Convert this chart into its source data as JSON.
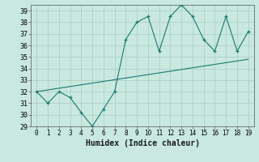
{
  "zigzag_x": [
    0,
    1,
    2,
    3,
    4,
    5,
    6,
    7,
    8,
    9,
    10,
    11,
    12,
    13,
    14,
    15,
    16,
    17,
    18,
    19
  ],
  "zigzag_y": [
    32,
    31,
    32,
    31.5,
    30.2,
    29,
    30.5,
    32,
    36.5,
    38,
    38.5,
    35.5,
    38.5,
    39.5,
    38.5,
    36.5,
    35.5,
    38.5,
    35.5,
    37.2
  ],
  "trend_x": [
    0,
    19
  ],
  "trend_y": [
    32.0,
    34.8
  ],
  "line_color": "#1a7a6e",
  "bg_color": "#c8e8e0",
  "grid_color": "#aaccc4",
  "xlabel": "Humidex (Indice chaleur)",
  "ylim": [
    29,
    39.5
  ],
  "xlim": [
    -0.5,
    19.5
  ],
  "yticks": [
    29,
    30,
    31,
    32,
    33,
    34,
    35,
    36,
    37,
    38,
    39
  ],
  "xticks": [
    0,
    1,
    2,
    3,
    4,
    5,
    6,
    7,
    8,
    9,
    10,
    11,
    12,
    13,
    14,
    15,
    16,
    17,
    18,
    19
  ],
  "tick_fontsize": 6,
  "xlabel_fontsize": 7
}
